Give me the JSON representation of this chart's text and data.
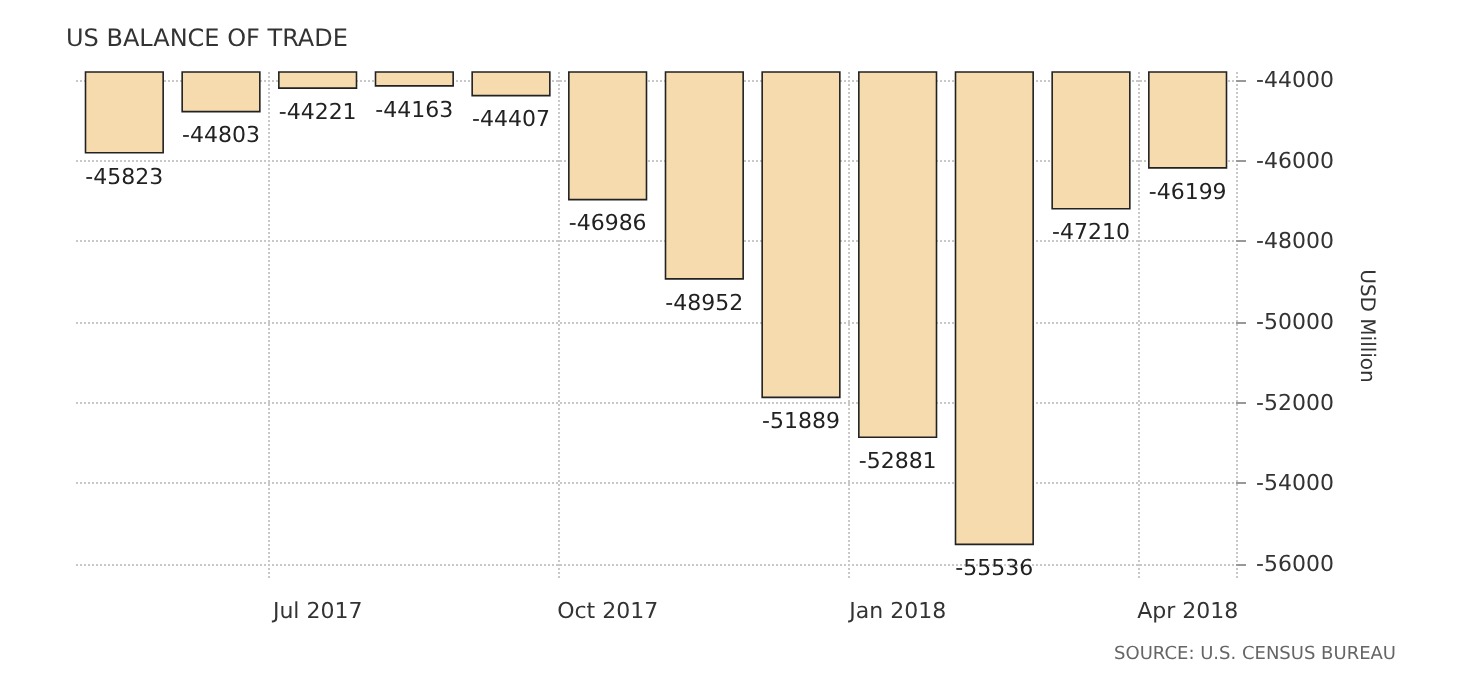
{
  "chart_data": {
    "type": "bar",
    "title": "US BALANCE OF TRADE",
    "ylabel": "USD Million",
    "annotations": [
      "SOURCE: U.S. CENSUS BUREAU"
    ],
    "categories": [
      null,
      null,
      "Jul 2017",
      null,
      null,
      "Oct 2017",
      null,
      null,
      "Jan 2018",
      null,
      null,
      "Apr 2018"
    ],
    "values": [
      -45823,
      -44803,
      -44221,
      -44163,
      -44407,
      -46986,
      -48952,
      -51889,
      -52881,
      -55536,
      -47210,
      -46199
    ],
    "color": "#f5dbae",
    "ylim": [
      -56400,
      -43800
    ],
    "yticks": [
      -44000,
      -46000,
      -48000,
      -50000,
      -52000,
      -54000,
      -56000
    ],
    "grid": true,
    "data_labels": true
  }
}
